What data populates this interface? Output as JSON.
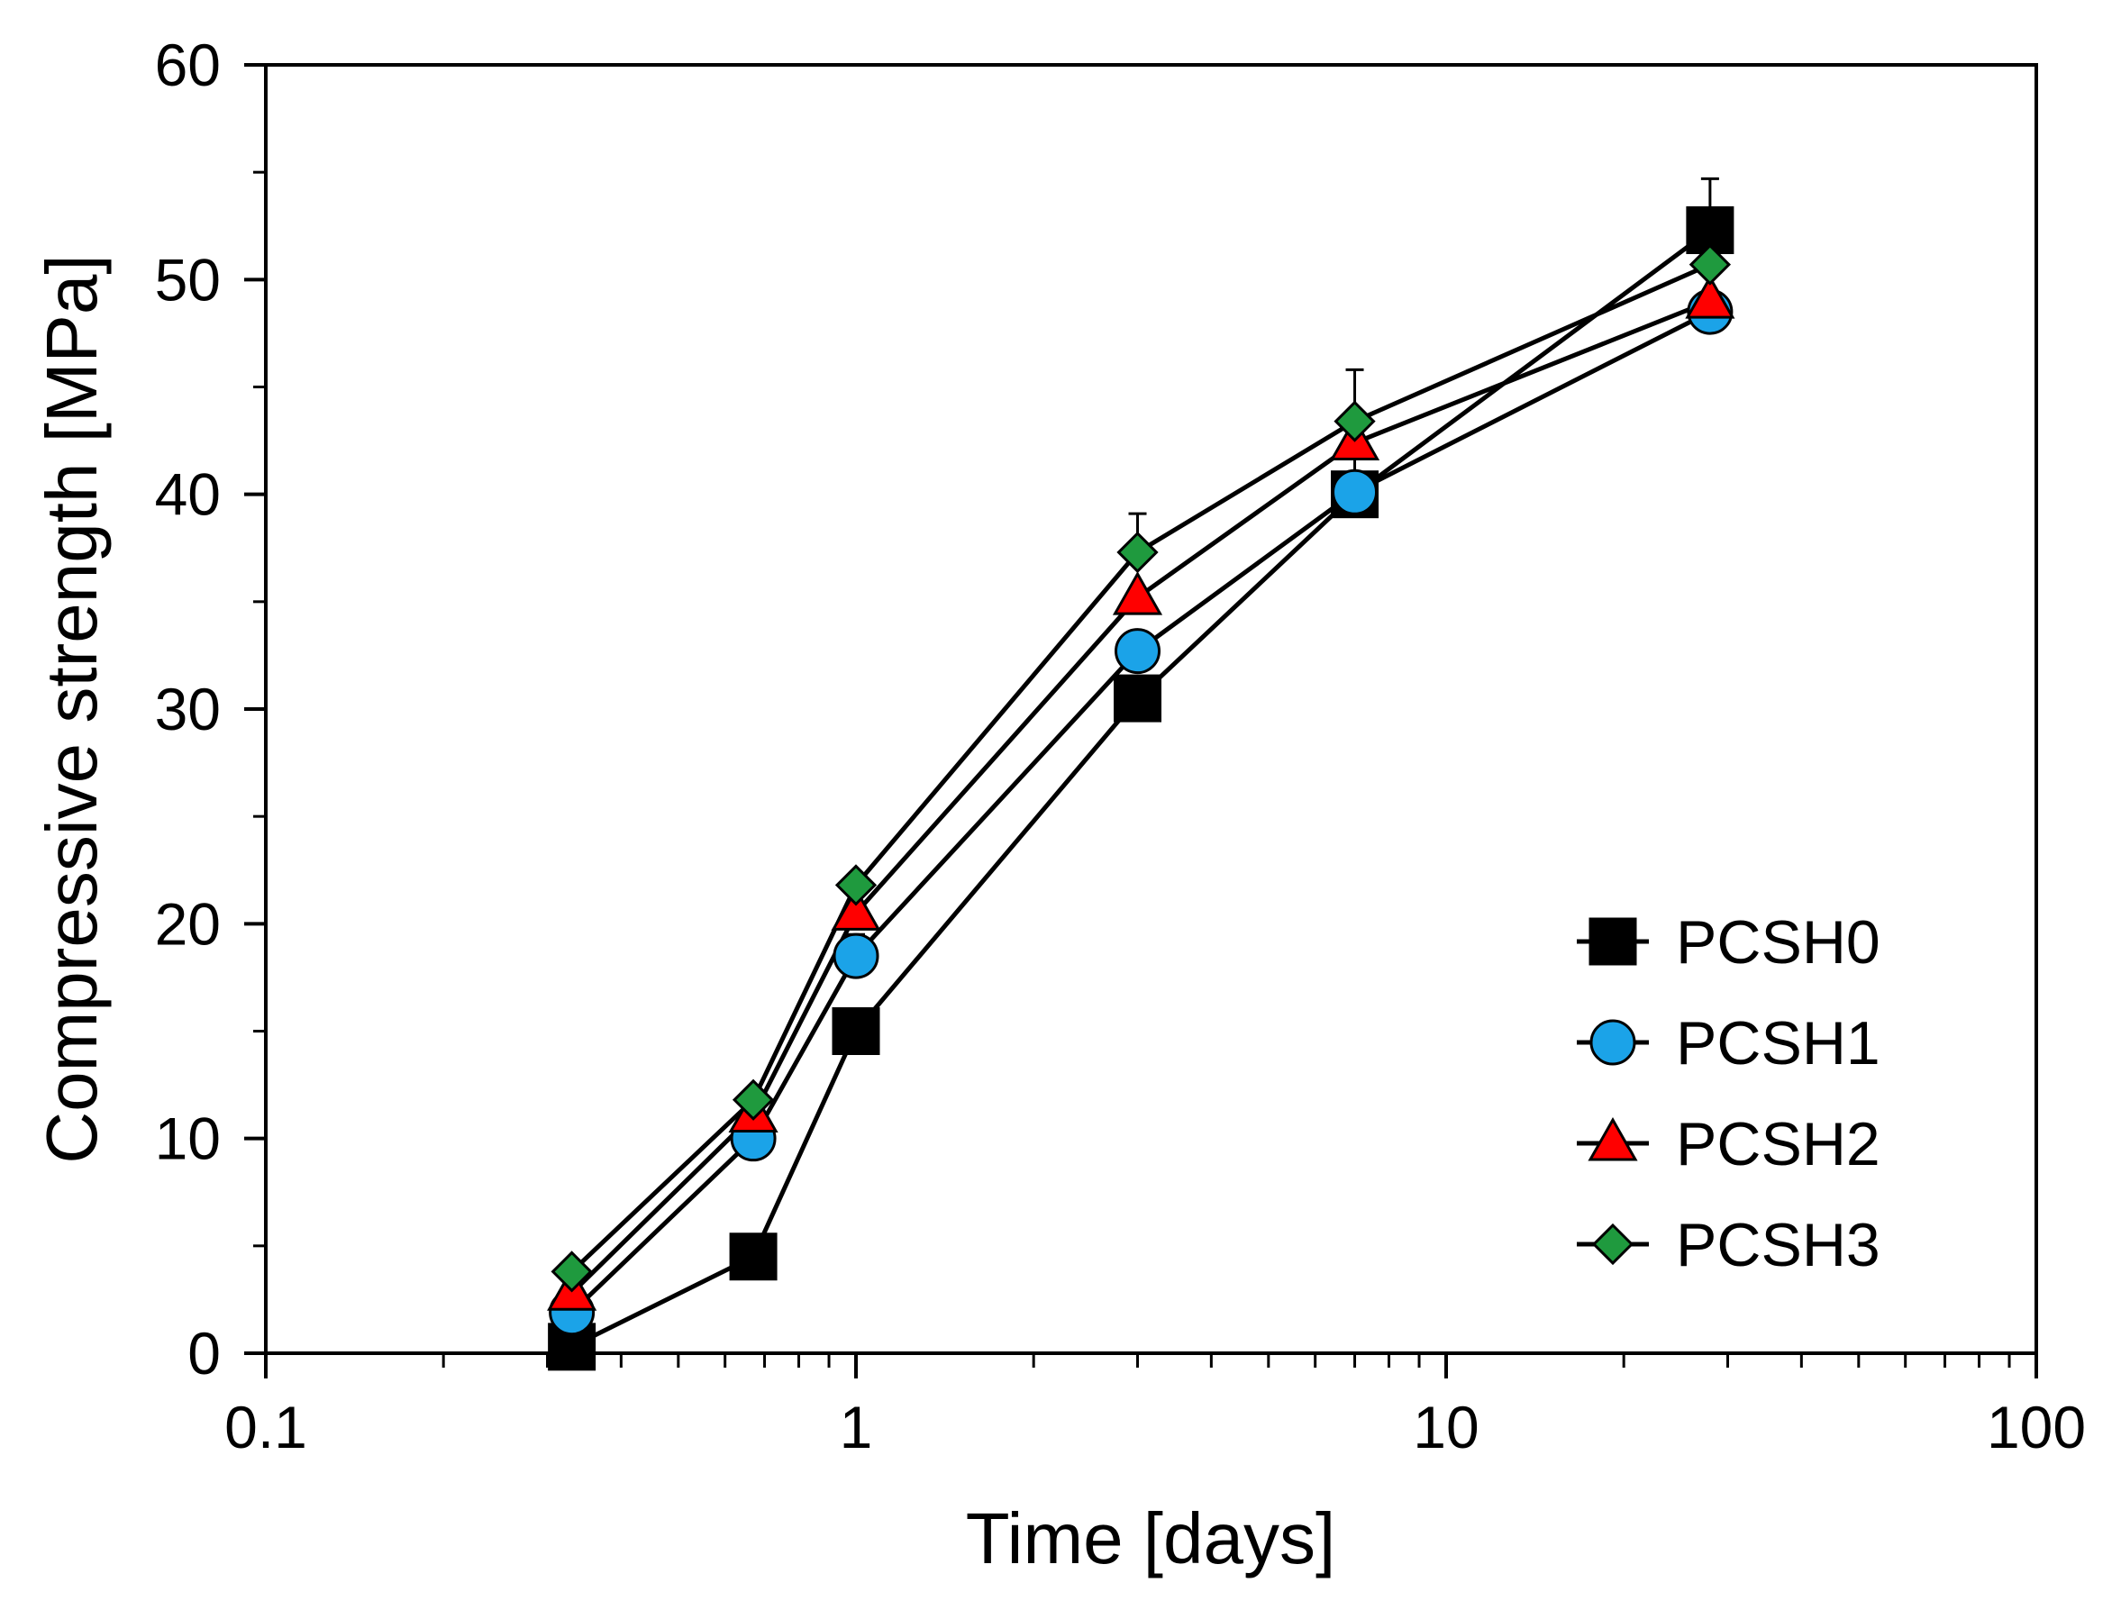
{
  "chart_data": {
    "type": "line",
    "xscale": "log",
    "xlabel": "Time [days]",
    "ylabel": "Compressive strength [MPa]",
    "xlim": [
      0.1,
      100
    ],
    "ylim": [
      0,
      60
    ],
    "xticks": [
      0.1,
      1,
      10,
      100
    ],
    "xtick_labels": [
      "0.1",
      "1",
      "10",
      "100"
    ],
    "yticks": [
      0,
      10,
      20,
      30,
      40,
      50,
      60
    ],
    "ytick_labels": [
      "0",
      "10",
      "20",
      "30",
      "40",
      "50",
      "60"
    ],
    "grid": false,
    "legend_position": "bottom-right",
    "x": [
      0.33,
      0.67,
      1,
      3,
      7,
      28
    ],
    "series": [
      {
        "name": "PCSH0",
        "marker": "square",
        "color": "#000000",
        "values": [
          0.3,
          4.5,
          15.0,
          30.5,
          40.0,
          52.3
        ],
        "errors": [
          0,
          0,
          0,
          1.0,
          0,
          2.4
        ]
      },
      {
        "name": "PCSH1",
        "marker": "circle",
        "color": "#1ba3e8",
        "values": [
          1.9,
          10.0,
          18.5,
          32.7,
          40.1,
          48.5
        ],
        "errors": [
          0,
          0.7,
          1.0,
          0,
          2.2,
          0
        ]
      },
      {
        "name": "PCSH2",
        "marker": "triangle",
        "color": "#ff0000",
        "values": [
          2.8,
          11.1,
          20.5,
          35.2,
          42.4,
          49.0
        ],
        "errors": [
          0,
          0,
          0,
          0,
          0,
          2.2
        ]
      },
      {
        "name": "PCSH3",
        "marker": "diamond",
        "color": "#1f9a3e",
        "values": [
          3.8,
          11.8,
          21.8,
          37.3,
          43.4,
          50.7
        ],
        "errors": [
          0,
          0,
          0,
          1.8,
          2.4,
          0
        ]
      }
    ]
  }
}
